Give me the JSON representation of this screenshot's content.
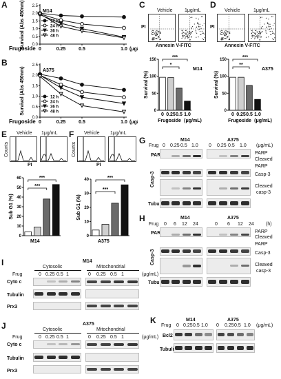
{
  "panels": {
    "A": {
      "label": "A",
      "cell": "M14"
    },
    "B": {
      "label": "B",
      "cell": "A375"
    },
    "C": {
      "label": "C",
      "vehicle": "Vehicle",
      "dose": "1μg/mL",
      "pi": "PI",
      "annexin": "Annexin V-FITC",
      "cell": "M14",
      "sig1": "***",
      "sig2": "*"
    },
    "D": {
      "label": "D",
      "vehicle": "Vehicle",
      "dose": "1μg/mL",
      "pi": "PI",
      "annexin": "Annexin V-FITC",
      "cell": "A375",
      "sig1": "***",
      "sig2": "**"
    },
    "E": {
      "label": "E",
      "vehicle": "Vehicle",
      "dose": "1μg/mL",
      "counts": "Counts",
      "pi": "PI",
      "cell": "M14",
      "sig1": "***",
      "sig2": "***"
    },
    "F": {
      "label": "F",
      "vehicle": "Vehicle",
      "dose": "1μg/mL",
      "counts": "Counts",
      "pi": "PI",
      "cell": "A375",
      "sig1": "***",
      "sig2": "***"
    },
    "G": {
      "label": "G",
      "frug": "Frug",
      "doses": [
        "0",
        "0.25",
        "0.5",
        "1.0"
      ],
      "unit": "(μg/mL)",
      "cells": [
        "M14",
        "A375"
      ],
      "rows": [
        "PARP",
        "Casp-3",
        "Tubulin"
      ],
      "right": [
        "PARP",
        "Cleaved",
        "PARP",
        "Casp-3",
        "Cleaved",
        "casp-3"
      ]
    },
    "H": {
      "label": "H",
      "frug": "Frug",
      "times": [
        "0",
        "6",
        "12",
        "24"
      ],
      "unit": "(h)",
      "cells": [
        "M14",
        "A375"
      ],
      "rows": [
        "PARP",
        "Casp-3",
        "Tubulin"
      ],
      "right": [
        "PARP",
        "Cleaved",
        "PARP",
        "Casp-3",
        "Cleaved",
        "casp-3"
      ]
    },
    "I": {
      "label": "I",
      "cell": "M14",
      "cytosolic": "Cytosolic",
      "mito": "Mitochondrial",
      "frug": "Frug",
      "doses": [
        "0",
        "0.25",
        "0.5",
        "1",
        "0",
        "0.25",
        "0.5",
        "1"
      ],
      "unit": "(μg/mL)",
      "rows": [
        "Cyto c",
        "Tubulin",
        "Prx3"
      ]
    },
    "J": {
      "label": "J",
      "cell": "A375",
      "cytosolic": "Cytosolic",
      "mito": "Mitochondrial",
      "frug": "Frug",
      "doses": [
        "0",
        "0.25",
        "0.5",
        "1",
        "0",
        "0.25",
        "0.5",
        "1"
      ],
      "unit": "(μg/mL)",
      "rows": [
        "Cyto c",
        "Tubulin",
        "Prx3"
      ]
    },
    "K": {
      "label": "K",
      "frug": "Frug",
      "doses": [
        "0",
        "0.25",
        "0.5",
        "1.0",
        "0",
        "0.25",
        "0.5",
        "1.0"
      ],
      "unit": "(μg/mL)",
      "cells": [
        "M14",
        "A375"
      ],
      "rows": [
        "Bcl2",
        "Tubulin"
      ]
    }
  },
  "chart_data": [
    {
      "type": "line",
      "panel": "A",
      "title": "M14",
      "xlabel": "Frugoside",
      "unit": "(μg/mL)",
      "ylabel": "Survival (Abs 450nm)",
      "x": [
        0,
        0.25,
        0.5,
        1.0
      ],
      "ylim": [
        0,
        2.5
      ],
      "yticks": [
        "0.0",
        "0.5",
        "1.0",
        "1.5",
        "2.0",
        "2.5"
      ],
      "xticks": [
        "0",
        "0.25",
        "0.5",
        "1.0"
      ],
      "series": [
        {
          "name": "12 h",
          "values": [
            2.0,
            1.85,
            1.8,
            1.75
          ]
        },
        {
          "name": "24 h",
          "values": [
            1.95,
            1.55,
            1.3,
            1.05
          ]
        },
        {
          "name": "36 h",
          "values": [
            1.9,
            1.35,
            1.0,
            0.45
          ]
        },
        {
          "name": "48 h",
          "values": [
            1.95,
            1.15,
            0.85,
            0.4
          ]
        }
      ]
    },
    {
      "type": "line",
      "panel": "B",
      "title": "A375",
      "xlabel": "Frugoside",
      "unit": "(μg/mL)",
      "ylabel": "Survival (Abs 450nm)",
      "x": [
        0,
        0.25,
        0.5,
        1.0
      ],
      "ylim": [
        0,
        2.5
      ],
      "yticks": [
        "0.0",
        "0.5",
        "1.0",
        "1.5",
        "2.0",
        "2.5"
      ],
      "xticks": [
        "0",
        "0.25",
        "0.5",
        "1.0"
      ],
      "series": [
        {
          "name": "12 h",
          "values": [
            2.05,
            1.85,
            1.55,
            1.3
          ]
        },
        {
          "name": "24 h",
          "values": [
            2.0,
            1.55,
            1.2,
            0.95
          ]
        },
        {
          "name": "36 h",
          "values": [
            2.0,
            1.4,
            0.95,
            0.65
          ]
        },
        {
          "name": "48 h",
          "values": [
            1.95,
            1.1,
            0.55,
            0.25
          ]
        }
      ]
    },
    {
      "type": "bar",
      "panel": "C",
      "categories": [
        "0",
        "0.25",
        "0.5",
        "1.0"
      ],
      "values": [
        97,
        96,
        65,
        27
      ],
      "ylabel": "Survival (%)",
      "xlabel": "Frugoside",
      "unit": "(μg/mL)",
      "ylim": [
        0,
        150
      ],
      "yticks": [
        "0",
        "50",
        "100",
        "150"
      ]
    },
    {
      "type": "bar",
      "panel": "D",
      "categories": [
        "0",
        "0.25",
        "0.5",
        "1.0"
      ],
      "values": [
        97,
        97,
        73,
        32
      ],
      "ylabel": "Survival (%)",
      "xlabel": "Frugoside",
      "unit": "(μg/mL)",
      "ylim": [
        0,
        150
      ],
      "yticks": [
        "0",
        "50",
        "100",
        "150"
      ]
    },
    {
      "type": "bar",
      "panel": "E",
      "categories": [
        "0",
        "0.25",
        "0.5",
        "1.0"
      ],
      "values": [
        4,
        9,
        38,
        53
      ],
      "ylabel": "Sub G1 (%)",
      "ylim": [
        0,
        60
      ],
      "yticks": [
        "0",
        "10",
        "20",
        "30",
        "40",
        "50",
        "60"
      ]
    },
    {
      "type": "bar",
      "panel": "F",
      "categories": [
        "0",
        "0.25",
        "0.5",
        "1.0"
      ],
      "values": [
        4,
        8,
        23,
        36
      ],
      "ylabel": "Sub G1 (%)",
      "ylim": [
        0,
        40
      ],
      "yticks": [
        "0",
        "10",
        "20",
        "30",
        "40"
      ]
    }
  ]
}
